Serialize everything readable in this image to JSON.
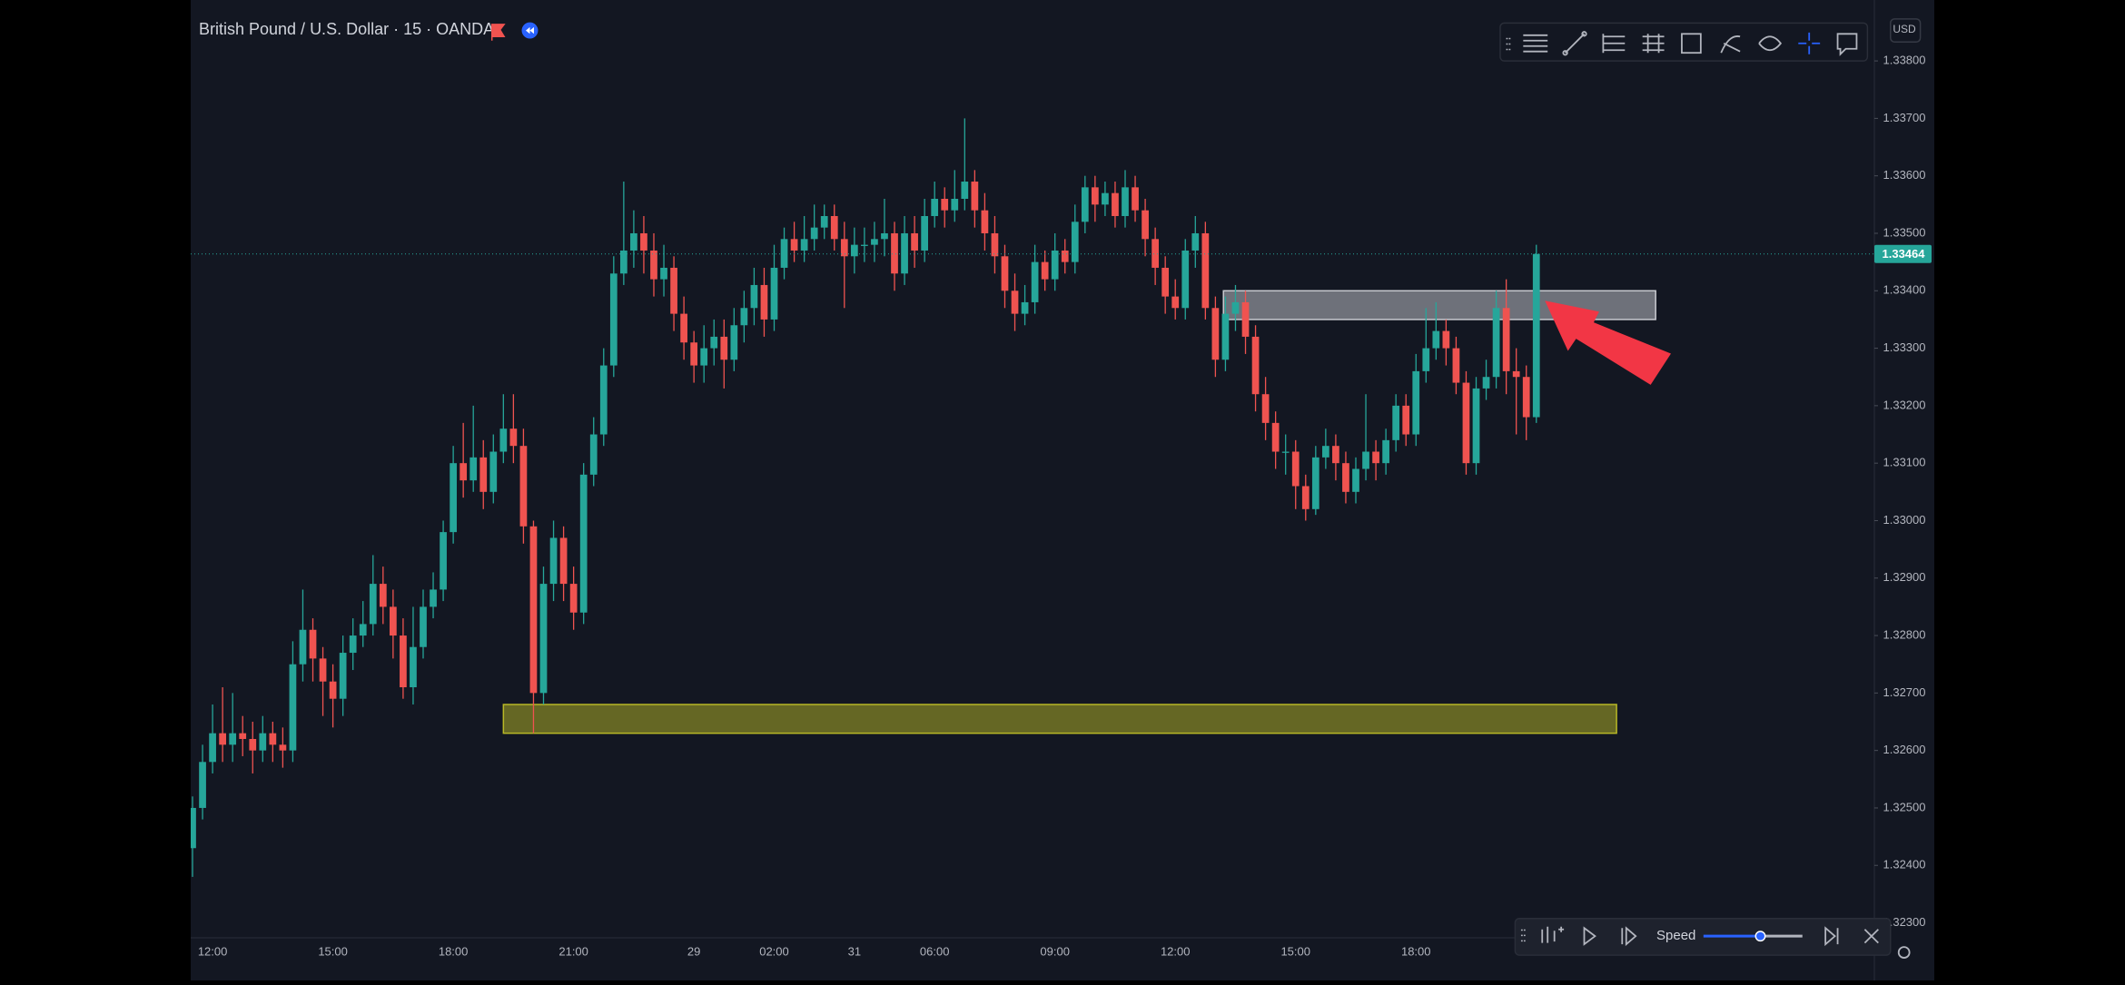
{
  "chart_data": {
    "type": "candlestick",
    "title": "British Pound / U.S. Dollar · 15 · OANDA",
    "categories": [
      null,
      null,
      "12:00",
      null,
      null,
      null,
      null,
      null,
      null,
      null,
      null,
      null,
      null,
      null,
      "15:00",
      null,
      null,
      null,
      null,
      null,
      null,
      null,
      null,
      null,
      null,
      null,
      "18:00",
      null,
      null,
      null,
      null,
      null,
      null,
      null,
      null,
      null,
      null,
      null,
      "21:00",
      null,
      null,
      null,
      null,
      null,
      null,
      null,
      null,
      null,
      null,
      null,
      "29",
      null,
      null,
      null,
      null,
      null,
      null,
      null,
      "02:00",
      null,
      null,
      null,
      null,
      null,
      null,
      null,
      "31",
      null,
      null,
      null,
      null,
      null,
      null,
      null,
      "06:00",
      null,
      null,
      null,
      null,
      null,
      null,
      null,
      null,
      null,
      null,
      null,
      "09:00",
      null,
      null,
      null,
      null,
      null,
      null,
      null,
      null,
      null,
      null,
      null,
      "12:00",
      null,
      null,
      null,
      null,
      null,
      null,
      null,
      null,
      null,
      null,
      null,
      "15:00",
      null,
      null,
      null,
      null,
      null,
      null,
      null,
      null,
      null,
      null,
      null,
      "18:00",
      null,
      null,
      null,
      null,
      null,
      null,
      null,
      null,
      null,
      null,
      null,
      null
    ],
    "candles": [
      [
        1.3243,
        1.3252,
        1.3238,
        1.325
      ],
      [
        1.325,
        1.3261,
        1.3248,
        1.3258
      ],
      [
        1.3258,
        1.3268,
        1.3256,
        1.3263
      ],
      [
        1.3263,
        1.3271,
        1.3258,
        1.3261
      ],
      [
        1.3261,
        1.327,
        1.3258,
        1.3263
      ],
      [
        1.3263,
        1.3266,
        1.3259,
        1.3262
      ],
      [
        1.3262,
        1.3265,
        1.3256,
        1.326
      ],
      [
        1.326,
        1.3266,
        1.3258,
        1.3263
      ],
      [
        1.3263,
        1.3265,
        1.3258,
        1.3261
      ],
      [
        1.3261,
        1.3264,
        1.3257,
        1.326
      ],
      [
        1.326,
        1.3279,
        1.3258,
        1.3275
      ],
      [
        1.3275,
        1.3288,
        1.3272,
        1.3281
      ],
      [
        1.3281,
        1.3283,
        1.3272,
        1.3276
      ],
      [
        1.3276,
        1.3278,
        1.3266,
        1.3272
      ],
      [
        1.3272,
        1.3275,
        1.3264,
        1.3269
      ],
      [
        1.3269,
        1.328,
        1.3266,
        1.3277
      ],
      [
        1.3277,
        1.3283,
        1.3274,
        1.328
      ],
      [
        1.328,
        1.3286,
        1.3278,
        1.3282
      ],
      [
        1.3282,
        1.3294,
        1.328,
        1.3289
      ],
      [
        1.3289,
        1.3292,
        1.3282,
        1.3285
      ],
      [
        1.3285,
        1.3288,
        1.3276,
        1.328
      ],
      [
        1.328,
        1.3283,
        1.3269,
        1.3271
      ],
      [
        1.3271,
        1.3285,
        1.3268,
        1.3278
      ],
      [
        1.3278,
        1.3288,
        1.3276,
        1.3285
      ],
      [
        1.3285,
        1.3291,
        1.3283,
        1.3288
      ],
      [
        1.3288,
        1.33,
        1.3286,
        1.3298
      ],
      [
        1.3298,
        1.3313,
        1.3296,
        1.331
      ],
      [
        1.331,
        1.3317,
        1.3304,
        1.3307
      ],
      [
        1.3307,
        1.332,
        1.3305,
        1.3311
      ],
      [
        1.3311,
        1.3314,
        1.3302,
        1.3305
      ],
      [
        1.3305,
        1.3315,
        1.3303,
        1.3312
      ],
      [
        1.3312,
        1.3322,
        1.331,
        1.3316
      ],
      [
        1.3316,
        1.3322,
        1.331,
        1.3313
      ],
      [
        1.3313,
        1.3316,
        1.3296,
        1.3299
      ],
      [
        1.3299,
        1.33,
        1.3263,
        1.327
      ],
      [
        1.327,
        1.3292,
        1.3268,
        1.3289
      ],
      [
        1.3289,
        1.33,
        1.3286,
        1.3297
      ],
      [
        1.3297,
        1.3299,
        1.3286,
        1.3289
      ],
      [
        1.3289,
        1.3292,
        1.3281,
        1.3284
      ],
      [
        1.3284,
        1.331,
        1.3282,
        1.3308
      ],
      [
        1.3308,
        1.3318,
        1.3306,
        1.3315
      ],
      [
        1.3315,
        1.333,
        1.3313,
        1.3327
      ],
      [
        1.3327,
        1.3346,
        1.3325,
        1.3343
      ],
      [
        1.3343,
        1.3359,
        1.3341,
        1.3347
      ],
      [
        1.3347,
        1.3354,
        1.3344,
        1.335
      ],
      [
        1.335,
        1.3353,
        1.3343,
        1.3347
      ],
      [
        1.3347,
        1.335,
        1.3339,
        1.3342
      ],
      [
        1.3342,
        1.3348,
        1.3339,
        1.3344
      ],
      [
        1.3344,
        1.3346,
        1.3333,
        1.3336
      ],
      [
        1.3336,
        1.3339,
        1.3328,
        1.3331
      ],
      [
        1.3331,
        1.3333,
        1.3324,
        1.3327
      ],
      [
        1.3327,
        1.3334,
        1.3324,
        1.333
      ],
      [
        1.333,
        1.3335,
        1.3327,
        1.3332
      ],
      [
        1.3332,
        1.3335,
        1.3323,
        1.3328
      ],
      [
        1.3328,
        1.3337,
        1.3326,
        1.3334
      ],
      [
        1.3334,
        1.334,
        1.3331,
        1.3337
      ],
      [
        1.3337,
        1.3344,
        1.3334,
        1.3341
      ],
      [
        1.3341,
        1.3344,
        1.3332,
        1.3335
      ],
      [
        1.3335,
        1.3348,
        1.3333,
        1.3344
      ],
      [
        1.3344,
        1.3351,
        1.3342,
        1.3349
      ],
      [
        1.3349,
        1.3352,
        1.3345,
        1.3347
      ],
      [
        1.3347,
        1.3353,
        1.3345,
        1.3349
      ],
      [
        1.3349,
        1.3355,
        1.3347,
        1.3351
      ],
      [
        1.3351,
        1.3355,
        1.3349,
        1.3353
      ],
      [
        1.3353,
        1.3355,
        1.3347,
        1.3349
      ],
      [
        1.3349,
        1.3352,
        1.3337,
        1.3346
      ],
      [
        1.3346,
        1.3351,
        1.3343,
        1.3348
      ],
      [
        1.3348,
        1.3351,
        1.3345,
        1.3348
      ],
      [
        1.3348,
        1.3352,
        1.3345,
        1.3349
      ],
      [
        1.3349,
        1.3356,
        1.3346,
        1.335
      ],
      [
        1.335,
        1.3352,
        1.334,
        1.3343
      ],
      [
        1.3343,
        1.3353,
        1.3341,
        1.335
      ],
      [
        1.335,
        1.3353,
        1.3344,
        1.3347
      ],
      [
        1.3347,
        1.3356,
        1.3345,
        1.3353
      ],
      [
        1.3353,
        1.3359,
        1.3351,
        1.3356
      ],
      [
        1.3356,
        1.3358,
        1.3351,
        1.3354
      ],
      [
        1.3354,
        1.3361,
        1.3352,
        1.3356
      ],
      [
        1.3356,
        1.337,
        1.3354,
        1.3359
      ],
      [
        1.3359,
        1.3361,
        1.3351,
        1.3354
      ],
      [
        1.3354,
        1.3357,
        1.3347,
        1.335
      ],
      [
        1.335,
        1.3353,
        1.3343,
        1.3346
      ],
      [
        1.3346,
        1.3348,
        1.3337,
        1.334
      ],
      [
        1.334,
        1.3343,
        1.3333,
        1.3336
      ],
      [
        1.3336,
        1.3341,
        1.3334,
        1.3338
      ],
      [
        1.3338,
        1.3348,
        1.3336,
        1.3345
      ],
      [
        1.3345,
        1.3347,
        1.334,
        1.3342
      ],
      [
        1.3342,
        1.335,
        1.334,
        1.3347
      ],
      [
        1.3347,
        1.3349,
        1.3343,
        1.3345
      ],
      [
        1.3345,
        1.3355,
        1.3343,
        1.3352
      ],
      [
        1.3352,
        1.336,
        1.335,
        1.3358
      ],
      [
        1.3358,
        1.336,
        1.3352,
        1.3355
      ],
      [
        1.3355,
        1.3359,
        1.3353,
        1.3357
      ],
      [
        1.3357,
        1.3359,
        1.3351,
        1.3353
      ],
      [
        1.3353,
        1.3361,
        1.3351,
        1.3358
      ],
      [
        1.3358,
        1.336,
        1.3352,
        1.3354
      ],
      [
        1.3354,
        1.3356,
        1.3346,
        1.3349
      ],
      [
        1.3349,
        1.3351,
        1.3341,
        1.3344
      ],
      [
        1.3344,
        1.3346,
        1.3336,
        1.3339
      ],
      [
        1.3339,
        1.3342,
        1.3335,
        1.3337
      ],
      [
        1.3337,
        1.3349,
        1.3335,
        1.3347
      ],
      [
        1.3347,
        1.3353,
        1.3344,
        1.335
      ],
      [
        1.335,
        1.3352,
        1.3335,
        1.3337
      ],
      [
        1.3337,
        1.3339,
        1.3325,
        1.3328
      ],
      [
        1.3328,
        1.3339,
        1.3326,
        1.3336
      ],
      [
        1.3336,
        1.3341,
        1.3333,
        1.3338
      ],
      [
        1.3338,
        1.334,
        1.3329,
        1.3332
      ],
      [
        1.3332,
        1.3334,
        1.3319,
        1.3322
      ],
      [
        1.3322,
        1.3325,
        1.3314,
        1.3317
      ],
      [
        1.3317,
        1.3319,
        1.3309,
        1.3312
      ],
      [
        1.3312,
        1.3315,
        1.3308,
        1.3312
      ],
      [
        1.3312,
        1.3314,
        1.3302,
        1.3306
      ],
      [
        1.3306,
        1.3308,
        1.33,
        1.3302
      ],
      [
        1.3302,
        1.3313,
        1.3301,
        1.3311
      ],
      [
        1.3311,
        1.3316,
        1.3309,
        1.3313
      ],
      [
        1.3313,
        1.3315,
        1.3307,
        1.331
      ],
      [
        1.331,
        1.3312,
        1.3303,
        1.3305
      ],
      [
        1.3305,
        1.3311,
        1.3303,
        1.3309
      ],
      [
        1.3309,
        1.3322,
        1.3307,
        1.3312
      ],
      [
        1.3312,
        1.3314,
        1.3307,
        1.331
      ],
      [
        1.331,
        1.3316,
        1.3308,
        1.3314
      ],
      [
        1.3314,
        1.3322,
        1.3312,
        1.332
      ],
      [
        1.332,
        1.3322,
        1.3313,
        1.3315
      ],
      [
        1.3315,
        1.3329,
        1.3313,
        1.3326
      ],
      [
        1.3326,
        1.3337,
        1.3324,
        1.333
      ],
      [
        1.333,
        1.3338,
        1.3328,
        1.3333
      ],
      [
        1.3333,
        1.3335,
        1.3327,
        1.333
      ],
      [
        1.333,
        1.3332,
        1.3322,
        1.3324
      ],
      [
        1.3324,
        1.3326,
        1.3308,
        1.331
      ],
      [
        1.331,
        1.3325,
        1.3308,
        1.3323
      ],
      [
        1.3323,
        1.3328,
        1.3321,
        1.3325
      ],
      [
        1.3325,
        1.334,
        1.3323,
        1.3337
      ],
      [
        1.3337,
        1.3342,
        1.3322,
        1.3326
      ],
      [
        1.3326,
        1.333,
        1.3315,
        1.3325
      ],
      [
        1.3325,
        1.3327,
        1.3314,
        1.3318
      ],
      [
        1.3318,
        1.3348,
        1.3317,
        1.33464
      ]
    ],
    "up_color": "#26a69a",
    "down_color": "#ef5350",
    "ylim": [
      1.32274,
      1.33906
    ],
    "yticks": [
      {
        "value": 1.323,
        "label": "1.32300"
      },
      {
        "value": 1.324,
        "label": "1.32400"
      },
      {
        "value": 1.325,
        "label": "1.32500"
      },
      {
        "value": 1.326,
        "label": "1.32600"
      },
      {
        "value": 1.327,
        "label": "1.32700"
      },
      {
        "value": 1.328,
        "label": "1.32800"
      },
      {
        "value": 1.329,
        "label": "1.32900"
      },
      {
        "value": 1.33,
        "label": "1.33000"
      },
      {
        "value": 1.331,
        "label": "1.33100"
      },
      {
        "value": 1.332,
        "label": "1.33200"
      },
      {
        "value": 1.333,
        "label": "1.33300"
      },
      {
        "value": 1.334,
        "label": "1.33400"
      },
      {
        "value": 1.335,
        "label": "1.33500"
      },
      {
        "value": 1.336,
        "label": "1.33600"
      },
      {
        "value": 1.337,
        "label": "1.33700"
      },
      {
        "value": 1.338,
        "label": "1.33800"
      }
    ],
    "grid": false,
    "last_price": 1.33464,
    "zones": [
      {
        "color": "#b8b826",
        "x0": 31,
        "x1": 142,
        "y0": 1.3263,
        "y1": 1.3268
      },
      {
        "color": "#c9cbd1",
        "x0": 102.8,
        "x1": 145.9,
        "y0": 1.3335,
        "y1": 1.334
      }
    ]
  },
  "ui": {
    "currency": "USD",
    "speed": "Speed"
  }
}
